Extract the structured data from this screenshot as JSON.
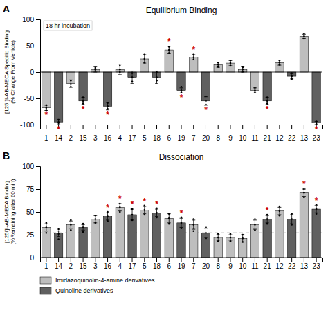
{
  "chart_data": [
    {
      "type": "bar",
      "panel": "A",
      "title": "Equilibrium Binding",
      "y_label": "[125I]I-AB-MECA Specific Binding\n(% Change From Vehicle)",
      "annotation": "18 hr incubation",
      "categories": [
        "1",
        "14",
        "2",
        "15",
        "3",
        "16",
        "4",
        "17",
        "5",
        "18",
        "6",
        "19",
        "7",
        "20",
        "8",
        "9",
        "10",
        "11",
        "21",
        "12",
        "22",
        "13",
        "23"
      ],
      "series": [
        {
          "name": "Imidazoquinolin-4-amine derivatives",
          "color": "#bebebe",
          "values": [
            -68,
            null,
            -22,
            null,
            5,
            null,
            5,
            null,
            25,
            null,
            42,
            null,
            28,
            null,
            14,
            17,
            5,
            -35,
            null,
            18,
            null,
            68,
            null
          ],
          "errors": [
            5,
            null,
            7,
            null,
            5,
            null,
            10,
            null,
            8,
            null,
            7,
            null,
            5,
            null,
            5,
            5,
            5,
            5,
            null,
            5,
            null,
            4,
            null
          ],
          "dots": [
            [
              -73,
              -68,
              -63
            ],
            null,
            [
              -28,
              -23,
              -16
            ],
            null,
            [
              2,
              5,
              8
            ],
            null,
            [
              0,
              5,
              12
            ],
            null,
            [
              18,
              25,
              33
            ],
            null,
            [
              36,
              42,
              48
            ],
            null,
            [
              24,
              28,
              33
            ],
            null,
            [
              10,
              14,
              18
            ],
            [
              12,
              17,
              22
            ],
            [
              1,
              5,
              9
            ],
            [
              -39,
              -35,
              -30
            ],
            null,
            [
              14,
              18,
              22
            ],
            null,
            [
              63,
              68,
              73
            ],
            null
          ]
        },
        {
          "name": "Quinoline derivatives",
          "color": "#606060",
          "values": [
            null,
            -95,
            null,
            -55,
            null,
            -65,
            null,
            -10,
            null,
            -10,
            null,
            -35,
            null,
            -55,
            null,
            null,
            null,
            null,
            -55,
            null,
            -8,
            null,
            -97
          ],
          "errors": [
            null,
            5,
            null,
            7,
            null,
            7,
            null,
            12,
            null,
            12,
            null,
            5,
            null,
            8,
            null,
            null,
            null,
            null,
            7,
            null,
            5,
            null,
            3
          ],
          "dots": [
            null,
            [
              -97,
              -95,
              -91
            ],
            null,
            [
              -60,
              -55,
              -48
            ],
            null,
            [
              -70,
              -65,
              -59
            ],
            null,
            [
              -18,
              -10,
              -2
            ],
            null,
            [
              -16,
              -10,
              0
            ],
            null,
            [
              -39,
              -35,
              -28
            ],
            null,
            [
              -62,
              -55,
              -46
            ],
            null,
            null,
            null,
            null,
            [
              -60,
              -55,
              -48
            ],
            null,
            [
              -13,
              -8,
              -2
            ],
            null,
            [
              -99,
              -97,
              -94
            ]
          ]
        }
      ],
      "stars": [
        "*",
        "*",
        null,
        "*",
        null,
        "*",
        null,
        null,
        null,
        null,
        "*",
        "*",
        "*",
        "*",
        null,
        null,
        null,
        null,
        "*",
        null,
        null,
        null,
        "*"
      ],
      "star_color": "#cc0000",
      "ylim": [
        -100,
        100
      ],
      "yticks": [
        -100,
        -50,
        0,
        50,
        100
      ],
      "grid": false
    },
    {
      "type": "bar",
      "panel": "B",
      "title": "Dissociation",
      "y_label": "[125I]I-AB-MECA Binding\n(%Remaining after 60 min)",
      "categories": [
        "1",
        "14",
        "2",
        "15",
        "3",
        "16",
        "4",
        "17",
        "5",
        "18",
        "6",
        "19",
        "7",
        "20",
        "8",
        "9",
        "10",
        "11",
        "21",
        "12",
        "22",
        "13",
        "23"
      ],
      "series": [
        {
          "name": "Imidazoquinolin-4-amine derivatives",
          "color": "#bebebe",
          "values": [
            33,
            null,
            36,
            null,
            42,
            null,
            55,
            null,
            52,
            null,
            43,
            null,
            36,
            null,
            22,
            22,
            21,
            36,
            null,
            51,
            null,
            71,
            null
          ],
          "errors": [
            4,
            null,
            4,
            null,
            4,
            null,
            4,
            null,
            4,
            null,
            5,
            null,
            5,
            null,
            3,
            3,
            4,
            5,
            null,
            4,
            null,
            4,
            null
          ],
          "dots": [
            [
              27,
              33,
              38
            ],
            null,
            [
              30,
              36,
              41
            ],
            null,
            [
              38,
              42,
              46
            ],
            null,
            [
              50,
              55,
              59
            ],
            null,
            [
              47,
              52,
              57
            ],
            null,
            [
              37,
              43,
              48
            ],
            null,
            [
              29,
              36,
              42
            ],
            null,
            [
              18,
              22,
              26
            ],
            [
              18,
              22,
              26
            ],
            [
              17,
              21,
              25
            ],
            [
              30,
              36,
              42
            ],
            null,
            [
              46,
              51,
              56
            ],
            null,
            [
              66,
              71,
              75
            ],
            null
          ]
        },
        {
          "name": "Quinoline derivatives",
          "color": "#606060",
          "values": [
            null,
            26,
            null,
            33,
            null,
            45,
            null,
            47,
            null,
            49,
            null,
            38,
            null,
            27,
            null,
            null,
            null,
            null,
            42,
            null,
            42,
            null,
            53
          ],
          "errors": [
            null,
            3,
            null,
            3,
            null,
            4,
            null,
            6,
            null,
            4,
            null,
            5,
            null,
            5,
            null,
            null,
            null,
            null,
            4,
            null,
            5,
            null,
            4
          ],
          "dots": [
            null,
            [
              20,
              26,
              31
            ],
            null,
            [
              28,
              33,
              37
            ],
            null,
            [
              40,
              45,
              50
            ],
            null,
            [
              41,
              47,
              53
            ],
            null,
            [
              44,
              49,
              54
            ],
            null,
            [
              32,
              38,
              44
            ],
            null,
            [
              21,
              27,
              33
            ],
            null,
            null,
            null,
            null,
            [
              37,
              42,
              47
            ],
            null,
            [
              36,
              42,
              48
            ],
            null,
            [
              48,
              53,
              58
            ]
          ]
        }
      ],
      "stars": [
        null,
        null,
        null,
        null,
        null,
        "*",
        "*",
        "*",
        "*",
        "*",
        null,
        "*",
        null,
        null,
        null,
        null,
        null,
        null,
        "*",
        null,
        null,
        "*",
        "*"
      ],
      "star_color": "#cc0000",
      "reference_line": 27,
      "ylim": [
        0,
        100
      ],
      "yticks": [
        0,
        25,
        50,
        75,
        100
      ],
      "grid": false,
      "legend": "lower left"
    }
  ]
}
